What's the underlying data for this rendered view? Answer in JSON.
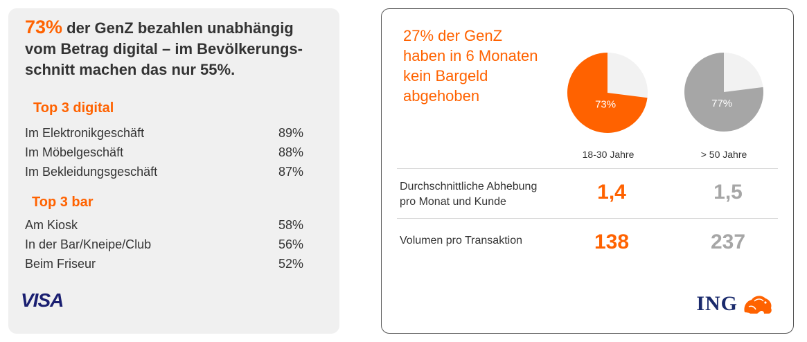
{
  "left": {
    "headline_pct": "73%",
    "headline_text": " der GenZ bezahlen unabhängig vom Betrag digital – im Bevölkerungs-schnitt machen das nur 55%.",
    "digital_title": "Top 3 digital",
    "digital_items": [
      {
        "label": "Im Elektronikgeschäft",
        "value": "89%"
      },
      {
        "label": "Im Möbelgeschäft",
        "value": "88%"
      },
      {
        "label": "Im Bekleidungsgeschäft",
        "value": "87%"
      }
    ],
    "bar_title": "Top 3 bar",
    "bar_items": [
      {
        "label": "Am Kiosk",
        "value": "58%"
      },
      {
        "label": "In der Bar/Kneipe/Club",
        "value": "56%"
      },
      {
        "label": "Beim Friseur",
        "value": "52%"
      }
    ],
    "logo": "VISA"
  },
  "right": {
    "headline": "27% der GenZ\nhaben in 6 Monaten\nkein Bargeld\nabgehoben",
    "metric1_label": "Durchschnittliche Abhebung\npro Monat und Kunde",
    "metric1_young": "1,4",
    "metric1_old": "1,5",
    "metric2_label": "Volumen pro Transaktion",
    "metric2_young": "138",
    "metric2_old": "237",
    "logo": "ING",
    "logo_icon": "lion-icon"
  },
  "colors": {
    "orange": "#ff6200",
    "gray": "#a6a6a6",
    "light": "#f2f2f2",
    "navy": "#1a2a6c"
  },
  "chart_data": {
    "type": "pie",
    "series": [
      {
        "category": "18-30 Jahre",
        "value": 73,
        "label": "73%",
        "color": "#ff6200"
      },
      {
        "category": "> 50 Jahre",
        "value": 77,
        "label": "77%",
        "color": "#a6a6a6"
      }
    ],
    "remainder_color": "#f2f2f2"
  }
}
